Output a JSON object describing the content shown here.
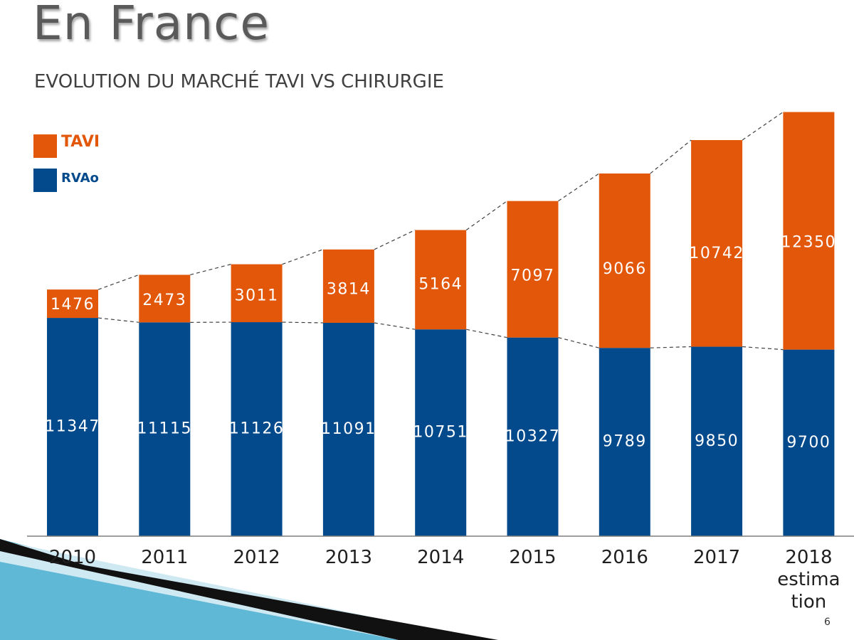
{
  "slide": {
    "title": "En France",
    "subtitle": "EVOLUTION DU MARCHÉ TAVI VS CHIRURGIE",
    "page_number": "6"
  },
  "colors": {
    "tavi": "#e2570a",
    "rvao": "#034a8c",
    "baseline": "#7f7f7f",
    "trendline": "#404040"
  },
  "chart_data": {
    "type": "bar",
    "stacked": true,
    "categories": [
      "2010",
      "2011",
      "2012",
      "2013",
      "2014",
      "2015",
      "2016",
      "2017",
      "2018\nestima\ntion"
    ],
    "series": [
      {
        "name": "RVAo",
        "color": "#034a8c",
        "values": [
          11347,
          11115,
          11126,
          11091,
          10751,
          10327,
          9789,
          9850,
          9700
        ]
      },
      {
        "name": "TAVI",
        "color": "#e2570a",
        "values": [
          1476,
          2473,
          3011,
          3814,
          5164,
          7097,
          9066,
          10742,
          12350
        ]
      }
    ],
    "legend": "top-left",
    "grid": false,
    "trend_lines": "dashed lines connecting bar tops and series boundaries",
    "title": "",
    "xlabel": "",
    "ylabel": ""
  }
}
